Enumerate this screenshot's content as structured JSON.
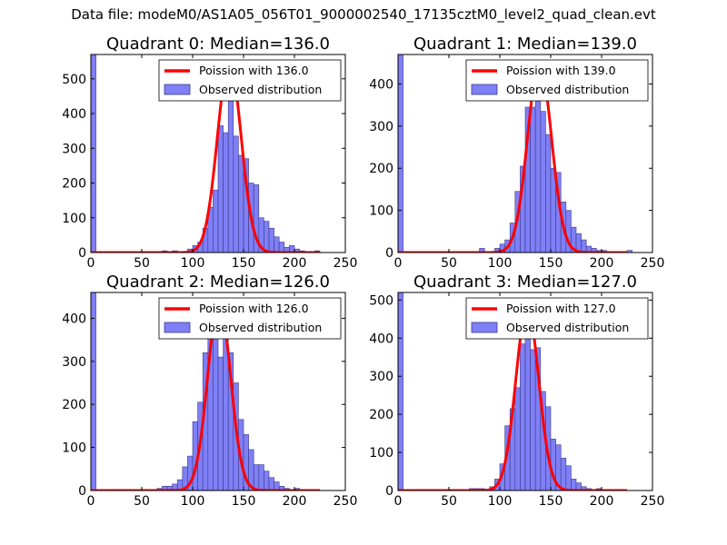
{
  "figure": {
    "title": "Data file: modeM0/AS1A05_056T01_9000002540_17135cztM0_level2_quad_clean.evt"
  },
  "chart_data": [
    {
      "type": "bar",
      "title": "Quadrant 0: Median=136.0",
      "median": 136.0,
      "xlim": [
        0,
        250
      ],
      "ylim": [
        0,
        570
      ],
      "xticks": [
        0,
        50,
        100,
        150,
        200,
        250
      ],
      "yticks": [
        0,
        100,
        200,
        300,
        400,
        500
      ],
      "legend": {
        "position": "top-right",
        "line_label": "Poission with 136.0",
        "bar_label": "Observed distribution"
      },
      "bin_width": 5,
      "bins": [
        [
          0,
          570
        ],
        [
          70,
          5
        ],
        [
          80,
          5
        ],
        [
          95,
          10
        ],
        [
          100,
          20
        ],
        [
          105,
          30
        ],
        [
          110,
          70
        ],
        [
          115,
          130
        ],
        [
          120,
          180
        ],
        [
          125,
          365
        ],
        [
          130,
          345
        ],
        [
          135,
          550
        ],
        [
          140,
          335
        ],
        [
          145,
          280
        ],
        [
          150,
          270
        ],
        [
          155,
          200
        ],
        [
          160,
          195
        ],
        [
          165,
          100
        ],
        [
          170,
          90
        ],
        [
          175,
          70
        ],
        [
          180,
          45
        ],
        [
          185,
          30
        ],
        [
          190,
          15
        ],
        [
          195,
          20
        ],
        [
          200,
          10
        ],
        [
          205,
          5
        ],
        [
          220,
          5
        ]
      ],
      "poisson_mean": 136.0,
      "poisson_peak": 550
    },
    {
      "type": "bar",
      "title": "Quadrant 1: Median=139.0",
      "median": 139.0,
      "xlim": [
        0,
        250
      ],
      "ylim": [
        0,
        470
      ],
      "xticks": [
        0,
        50,
        100,
        150,
        200,
        250
      ],
      "yticks": [
        0,
        100,
        200,
        300,
        400
      ],
      "legend": {
        "position": "top-right",
        "line_label": "Poission with 139.0",
        "bar_label": "Observed distribution"
      },
      "bin_width": 5,
      "bins": [
        [
          0,
          470
        ],
        [
          80,
          10
        ],
        [
          95,
          10
        ],
        [
          100,
          20
        ],
        [
          105,
          30
        ],
        [
          110,
          70
        ],
        [
          115,
          145
        ],
        [
          120,
          205
        ],
        [
          125,
          345
        ],
        [
          130,
          345
        ],
        [
          135,
          450
        ],
        [
          140,
          335
        ],
        [
          145,
          280
        ],
        [
          150,
          200
        ],
        [
          155,
          190
        ],
        [
          160,
          120
        ],
        [
          165,
          100
        ],
        [
          170,
          60
        ],
        [
          175,
          45
        ],
        [
          180,
          30
        ],
        [
          185,
          15
        ],
        [
          190,
          10
        ],
        [
          195,
          5
        ],
        [
          200,
          5
        ],
        [
          225,
          5
        ]
      ],
      "poisson_mean": 139.0,
      "poisson_peak": 450
    },
    {
      "type": "bar",
      "title": "Quadrant 2: Median=126.0",
      "median": 126.0,
      "xlim": [
        0,
        250
      ],
      "ylim": [
        0,
        460
      ],
      "xticks": [
        0,
        50,
        100,
        150,
        200,
        250
      ],
      "yticks": [
        0,
        100,
        200,
        300,
        400
      ],
      "legend": {
        "position": "top-right",
        "line_label": "Poission with 126.0",
        "bar_label": "Observed distribution"
      },
      "bin_width": 5,
      "bins": [
        [
          0,
          460
        ],
        [
          65,
          5
        ],
        [
          70,
          10
        ],
        [
          75,
          10
        ],
        [
          80,
          15
        ],
        [
          85,
          25
        ],
        [
          90,
          55
        ],
        [
          95,
          80
        ],
        [
          100,
          160
        ],
        [
          105,
          205
        ],
        [
          110,
          320
        ],
        [
          115,
          430
        ],
        [
          120,
          435
        ],
        [
          125,
          310
        ],
        [
          130,
          430
        ],
        [
          135,
          320
        ],
        [
          140,
          250
        ],
        [
          145,
          165
        ],
        [
          150,
          130
        ],
        [
          155,
          95
        ],
        [
          160,
          60
        ],
        [
          165,
          60
        ],
        [
          170,
          45
        ],
        [
          175,
          30
        ],
        [
          180,
          20
        ],
        [
          185,
          10
        ],
        [
          190,
          5
        ],
        [
          200,
          5
        ]
      ],
      "poisson_mean": 126.0,
      "poisson_peak": 440
    },
    {
      "type": "bar",
      "title": "Quadrant 3: Median=127.0",
      "median": 127.0,
      "xlim": [
        0,
        250
      ],
      "ylim": [
        0,
        520
      ],
      "xticks": [
        0,
        50,
        100,
        150,
        200,
        250
      ],
      "yticks": [
        0,
        100,
        200,
        300,
        400,
        500
      ],
      "legend": {
        "position": "top-right",
        "line_label": "Poission with 127.0",
        "bar_label": "Observed distribution"
      },
      "bin_width": 5,
      "bins": [
        [
          0,
          520
        ],
        [
          70,
          5
        ],
        [
          75,
          5
        ],
        [
          80,
          5
        ],
        [
          90,
          10
        ],
        [
          95,
          30
        ],
        [
          100,
          70
        ],
        [
          105,
          170
        ],
        [
          110,
          215
        ],
        [
          115,
          270
        ],
        [
          120,
          385
        ],
        [
          125,
          480
        ],
        [
          130,
          370
        ],
        [
          135,
          375
        ],
        [
          140,
          260
        ],
        [
          145,
          220
        ],
        [
          150,
          135
        ],
        [
          155,
          120
        ],
        [
          160,
          85
        ],
        [
          165,
          65
        ],
        [
          170,
          30
        ],
        [
          175,
          20
        ],
        [
          180,
          10
        ],
        [
          185,
          5
        ],
        [
          195,
          5
        ]
      ],
      "poisson_mean": 127.0,
      "poisson_peak": 480
    }
  ],
  "colors": {
    "bar_fill": "#7f7ff6",
    "bar_edge": "#3b3b8a",
    "poisson_line": "#ff0000",
    "axis": "#000000",
    "text": "#000000"
  }
}
